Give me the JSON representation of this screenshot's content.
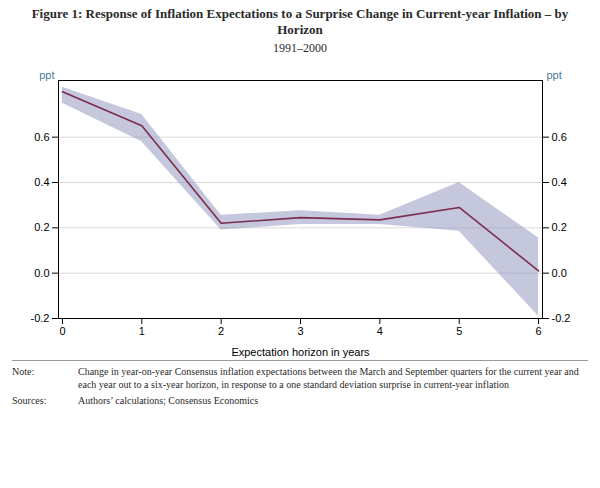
{
  "chart_data": {
    "type": "line",
    "title": "Figure 1: Response of Inflation Expectations to a Surprise Change in Current-year Inflation – by Horizon",
    "subtitle": "1991–2000",
    "xlabel": "Expectation horizon in years",
    "ylabel": "ppt",
    "y2label": "ppt",
    "x": [
      0,
      1,
      2,
      3,
      4,
      5,
      6
    ],
    "series": [
      {
        "type": "area",
        "color": "#8b8fbb",
        "lower": [
          0.75,
          0.58,
          0.19,
          0.215,
          0.215,
          0.185,
          -0.19
        ],
        "upper": [
          0.82,
          0.7,
          0.255,
          0.275,
          0.255,
          0.4,
          0.155
        ]
      },
      {
        "type": "line",
        "color": "#7b2d4e",
        "values": [
          0.8,
          0.65,
          0.22,
          0.245,
          0.235,
          0.29,
          0.01
        ]
      }
    ],
    "xlim": [
      -0.05,
      6.05
    ],
    "xticks": [
      0,
      1,
      2,
      3,
      4,
      5,
      6
    ],
    "ylim": [
      -0.2,
      0.85
    ],
    "yticks": [
      -0.2,
      {
        "value": 0.0,
        "label": "0.0"
      },
      0.2,
      0.4,
      0.6
    ],
    "y2lim": [
      -0.2,
      0.85
    ],
    "y2ticks": [
      -0.2,
      {
        "value": 0.0,
        "label": "0.0"
      },
      0.2,
      0.4,
      0.6
    ],
    "grid": "y",
    "annotations": [
      {
        "label": "Note:",
        "text": "Change in year-on-year Consensus inflation expectations between the March and September quarters for the current year and each year out to a six-year horizon, in response to a one standard deviation surprise in current-year inflation"
      },
      {
        "label": "Sources:",
        "text": "Authors’ calculations; Consensus Economics"
      }
    ]
  }
}
